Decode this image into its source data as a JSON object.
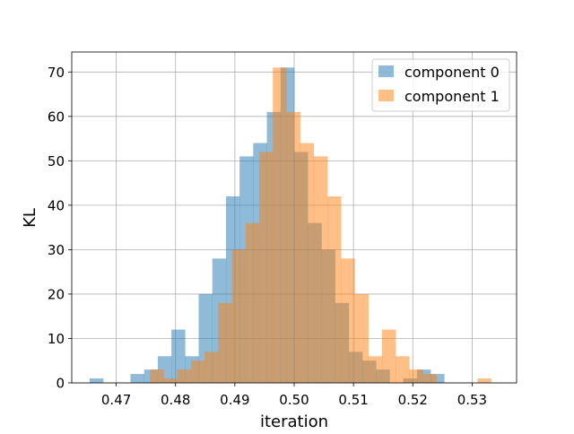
{
  "chart_data": {
    "type": "bar",
    "title": "",
    "xlabel": "iteration",
    "ylabel": "KL",
    "xlim": [
      0.4625,
      0.5375
    ],
    "ylim": [
      0,
      74.5
    ],
    "grid": true,
    "legend_position": "top-right",
    "x_ticks": [
      "0.47",
      "0.48",
      "0.49",
      "0.50",
      "0.51",
      "0.52",
      "0.53"
    ],
    "x_tick_values": [
      0.47,
      0.48,
      0.49,
      0.5,
      0.51,
      0.52,
      0.53
    ],
    "y_ticks": [
      "0",
      "10",
      "20",
      "30",
      "40",
      "50",
      "60",
      "70"
    ],
    "y_tick_values": [
      0,
      10,
      20,
      30,
      40,
      50,
      60,
      70
    ],
    "series": [
      {
        "name": "component 0",
        "color": "#1f77b4",
        "opacity": 0.5,
        "bin_edges": [
          0.4655,
          0.4678,
          0.4701,
          0.4724,
          0.4747,
          0.477,
          0.4793,
          0.4816,
          0.4839,
          0.4862,
          0.4885,
          0.4908,
          0.4931,
          0.4954,
          0.4977,
          0.5,
          0.5023,
          0.5046,
          0.5069,
          0.5092,
          0.5115,
          0.5138,
          0.5161,
          0.5184,
          0.5207,
          0.523,
          0.5253
        ],
        "values": [
          1,
          0,
          0,
          2,
          3,
          6,
          12,
          6,
          20,
          28,
          42,
          51,
          54,
          61,
          71,
          52,
          36,
          30,
          18,
          7,
          5,
          3,
          0,
          1,
          3,
          2
        ]
      },
      {
        "name": "component 1",
        "color": "#ff7f0e",
        "opacity": 0.5,
        "bin_edges": [
          0.4757,
          0.478,
          0.4803,
          0.4826,
          0.4849,
          0.4872,
          0.4895,
          0.4918,
          0.4941,
          0.4964,
          0.4987,
          0.501,
          0.5033,
          0.5056,
          0.5079,
          0.5102,
          0.5125,
          0.5148,
          0.5171,
          0.5194,
          0.5217,
          0.524,
          0.5263,
          0.5286,
          0.5309,
          0.5332,
          0.5355
        ],
        "values": [
          3,
          1,
          3,
          5,
          7,
          18,
          30,
          36,
          52,
          71,
          61,
          54,
          51,
          42,
          28,
          20,
          6,
          12,
          6,
          3,
          2,
          0,
          0,
          0,
          1,
          0
        ]
      }
    ]
  }
}
